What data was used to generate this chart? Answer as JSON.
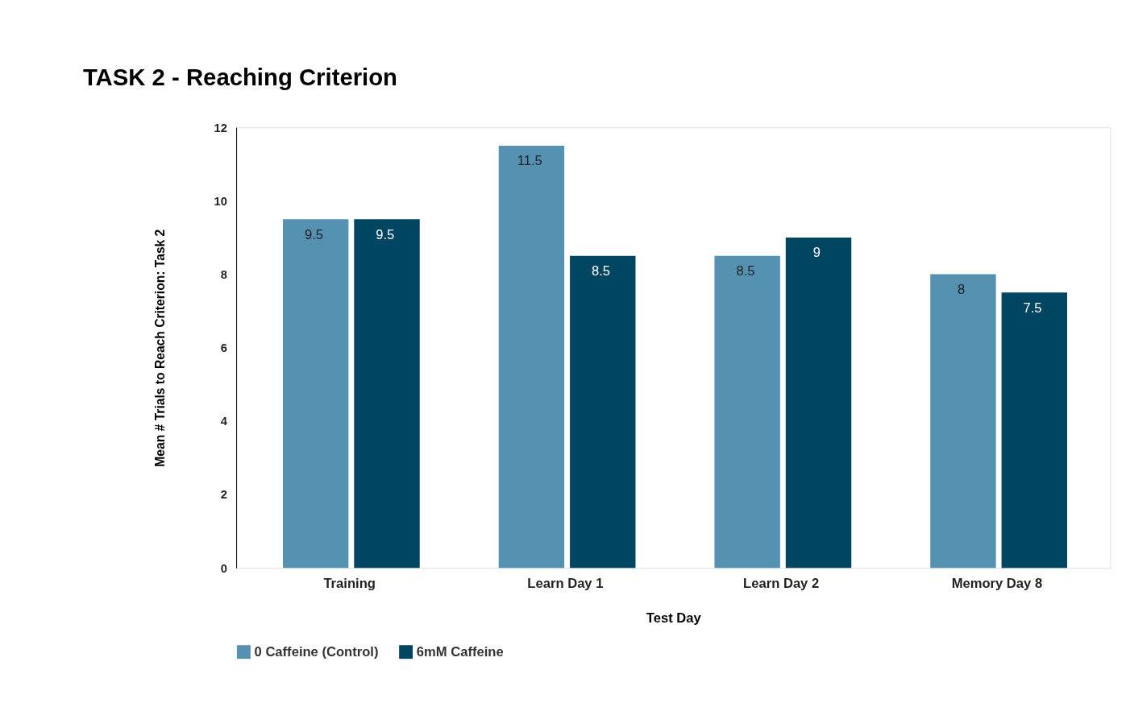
{
  "chart_data": {
    "type": "bar",
    "title": "TASK 2 - Reaching Criterion",
    "xlabel": "Test Day",
    "ylabel": "Mean # Trials to Reach Criterion: Task 2",
    "categories": [
      "Training",
      "Learn Day 1",
      "Learn Day 2",
      "Memory Day 8"
    ],
    "series": [
      {
        "name": "0 Caffeine (Control)",
        "color": "#5591b0",
        "values": [
          9.5,
          11.5,
          8.5,
          8
        ]
      },
      {
        "name": "6mM Caffeine",
        "color": "#004561",
        "values": [
          9.5,
          8.5,
          9,
          7.5
        ]
      }
    ],
    "ylim": [
      0,
      12
    ],
    "yticks": [
      0,
      2,
      4,
      6,
      8,
      10,
      12
    ],
    "grid": false,
    "legend": "bottom",
    "data_labels": true
  }
}
